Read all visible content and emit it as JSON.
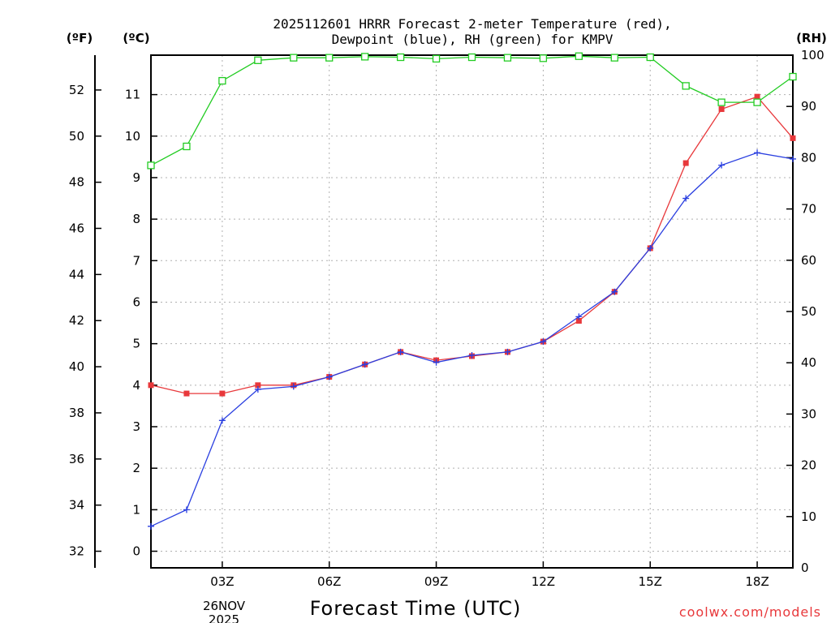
{
  "chart_data": {
    "type": "line",
    "title_line1": "2025112601 HRRR Forecast 2-meter Temperature (red),",
    "title_line2": "Dewpoint (blue), RH (green) for KMPV",
    "xlabel": "Forecast Time (UTC)",
    "date_label": [
      "26NOV",
      "2025"
    ],
    "x_ticks": [
      {
        "hour": 3,
        "label": "03Z"
      },
      {
        "hour": 6,
        "label": "06Z"
      },
      {
        "hour": 9,
        "label": "09Z"
      },
      {
        "hour": 12,
        "label": "12Z"
      },
      {
        "hour": 15,
        "label": "15Z"
      },
      {
        "hour": 18,
        "label": "18Z"
      }
    ],
    "xlim": [
      1,
      19
    ],
    "units": {
      "fahrenheit": "(ºF)",
      "celsius": "(ºC)",
      "rh": "(RH)"
    },
    "celsius_axis": {
      "ylim": [
        -0.4,
        11.95
      ],
      "ticks": [
        0,
        1,
        2,
        3,
        4,
        5,
        6,
        7,
        8,
        9,
        10,
        11
      ]
    },
    "fahrenheit_axis": {
      "ticks": [
        32,
        34,
        36,
        38,
        40,
        42,
        44,
        46,
        48,
        50,
        52
      ]
    },
    "rh_axis": {
      "ylim": [
        0,
        100
      ],
      "ticks": [
        0,
        10,
        20,
        30,
        40,
        50,
        60,
        70,
        80,
        90,
        100
      ]
    },
    "x": [
      1,
      2,
      3,
      4,
      5,
      6,
      7,
      8,
      9,
      10,
      11,
      12,
      13,
      14,
      15,
      16,
      17,
      18,
      19
    ],
    "series": [
      {
        "name": "Temperature",
        "unit": "C",
        "color": "#e8383b",
        "marker": "filled-square",
        "values": [
          4.0,
          3.8,
          3.8,
          4.0,
          4.0,
          4.2,
          4.5,
          4.8,
          4.6,
          4.7,
          4.8,
          5.05,
          5.55,
          6.25,
          7.3,
          9.35,
          10.65,
          10.95,
          9.95
        ]
      },
      {
        "name": "Dewpoint",
        "unit": "C",
        "color": "#2a3fe0",
        "marker": "plus",
        "values": [
          0.6,
          1.0,
          3.15,
          3.9,
          3.97,
          4.2,
          4.5,
          4.8,
          4.55,
          4.72,
          4.8,
          5.05,
          5.65,
          6.25,
          7.3,
          8.5,
          9.3,
          9.6,
          9.45
        ]
      },
      {
        "name": "RH",
        "unit": "%",
        "color": "#22cc22",
        "marker": "open-square",
        "values": [
          78.5,
          82.2,
          95.0,
          99.0,
          99.5,
          99.5,
          99.7,
          99.6,
          99.3,
          99.6,
          99.5,
          99.4,
          99.8,
          99.5,
          99.6,
          94.0,
          90.8,
          90.8,
          95.8
        ]
      }
    ],
    "grid": true
  },
  "credit": "coolwx.com/models"
}
